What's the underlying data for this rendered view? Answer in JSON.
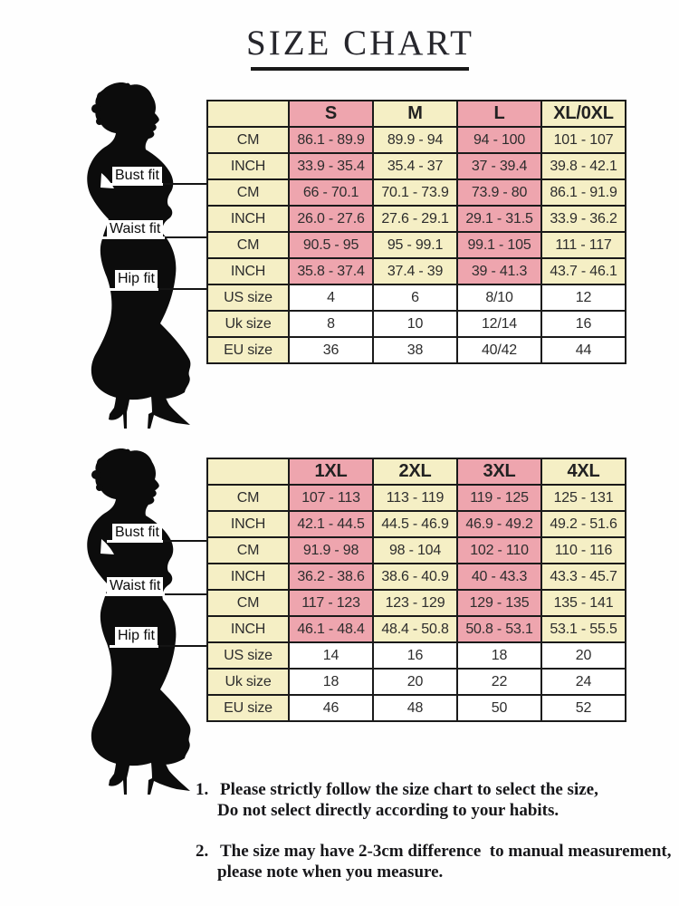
{
  "title": "SIZE CHART",
  "figure_labels": {
    "bust": "Bust fit",
    "waist": "Waist fit",
    "hip": "Hip fit"
  },
  "colors": {
    "pink": "#eea5ae",
    "cream": "#f5efc5",
    "border": "#1a1a1a",
    "silhouette": "#0c0c0c"
  },
  "chart_data": [
    {
      "type": "table",
      "size_headers": [
        "S",
        "M",
        "L",
        "XL/0XL"
      ],
      "measure_groups": [
        "Bust fit",
        "Waist fit",
        "Hip fit"
      ],
      "rows": [
        {
          "label": "CM",
          "values": [
            "86.1 - 89.9",
            "89.9 - 94",
            "94 - 100",
            "101 - 107"
          ]
        },
        {
          "label": "INCH",
          "values": [
            "33.9 - 35.4",
            "35.4 - 37",
            "37 - 39.4",
            "39.8 - 42.1"
          ]
        },
        {
          "label": "CM",
          "values": [
            "66 - 70.1",
            "70.1 - 73.9",
            "73.9 - 80",
            "86.1 - 91.9"
          ]
        },
        {
          "label": "INCH",
          "values": [
            "26.0 - 27.6",
            "27.6 - 29.1",
            "29.1 - 31.5",
            "33.9 - 36.2"
          ]
        },
        {
          "label": "CM",
          "values": [
            "90.5 - 95",
            "95 - 99.1",
            "99.1 - 105",
            "111 - 117"
          ]
        },
        {
          "label": "INCH",
          "values": [
            "35.8 - 37.4",
            "37.4 - 39",
            "39 - 41.3",
            "43.7 - 46.1"
          ]
        },
        {
          "label": "US size",
          "values": [
            "4",
            "6",
            "8/10",
            "12"
          ]
        },
        {
          "label": "Uk size",
          "values": [
            "8",
            "10",
            "12/14",
            "16"
          ]
        },
        {
          "label": "EU size",
          "values": [
            "36",
            "38",
            "40/42",
            "44"
          ]
        }
      ]
    },
    {
      "type": "table",
      "size_headers": [
        "1XL",
        "2XL",
        "3XL",
        "4XL"
      ],
      "measure_groups": [
        "Bust fit",
        "Waist fit",
        "Hip fit"
      ],
      "rows": [
        {
          "label": "CM",
          "values": [
            "107 - 113",
            "113 - 119",
            "119 - 125",
            "125 - 131"
          ]
        },
        {
          "label": "INCH",
          "values": [
            "42.1 - 44.5",
            "44.5 - 46.9",
            "46.9 - 49.2",
            "49.2 - 51.6"
          ]
        },
        {
          "label": "CM",
          "values": [
            "91.9 - 98",
            "98 - 104",
            "102 - 110",
            "110 - 116"
          ]
        },
        {
          "label": "INCH",
          "values": [
            "36.2 - 38.6",
            "38.6 - 40.9",
            "40 - 43.3",
            "43.3 - 45.7"
          ]
        },
        {
          "label": "CM",
          "values": [
            "117 - 123",
            "123 - 129",
            "129 - 135",
            "135 - 141"
          ]
        },
        {
          "label": "INCH",
          "values": [
            "46.1 - 48.4",
            "48.4 - 50.8",
            "50.8 - 53.1",
            "53.1 - 55.5"
          ]
        },
        {
          "label": "US size",
          "values": [
            "14",
            "16",
            "18",
            "20"
          ]
        },
        {
          "label": "Uk size",
          "values": [
            "18",
            "20",
            "22",
            "24"
          ]
        },
        {
          "label": "EU size",
          "values": [
            "46",
            "48",
            "50",
            "52"
          ]
        }
      ]
    }
  ],
  "notes": [
    {
      "num": "1.",
      "lines": [
        "Please strictly follow the size chart to select the size,",
        "Do not select directly according to your habits."
      ]
    },
    {
      "num": "2.",
      "lines": [
        "The size may have 2-3cm difference  to manual measurement,",
        "please note when you measure."
      ]
    }
  ]
}
